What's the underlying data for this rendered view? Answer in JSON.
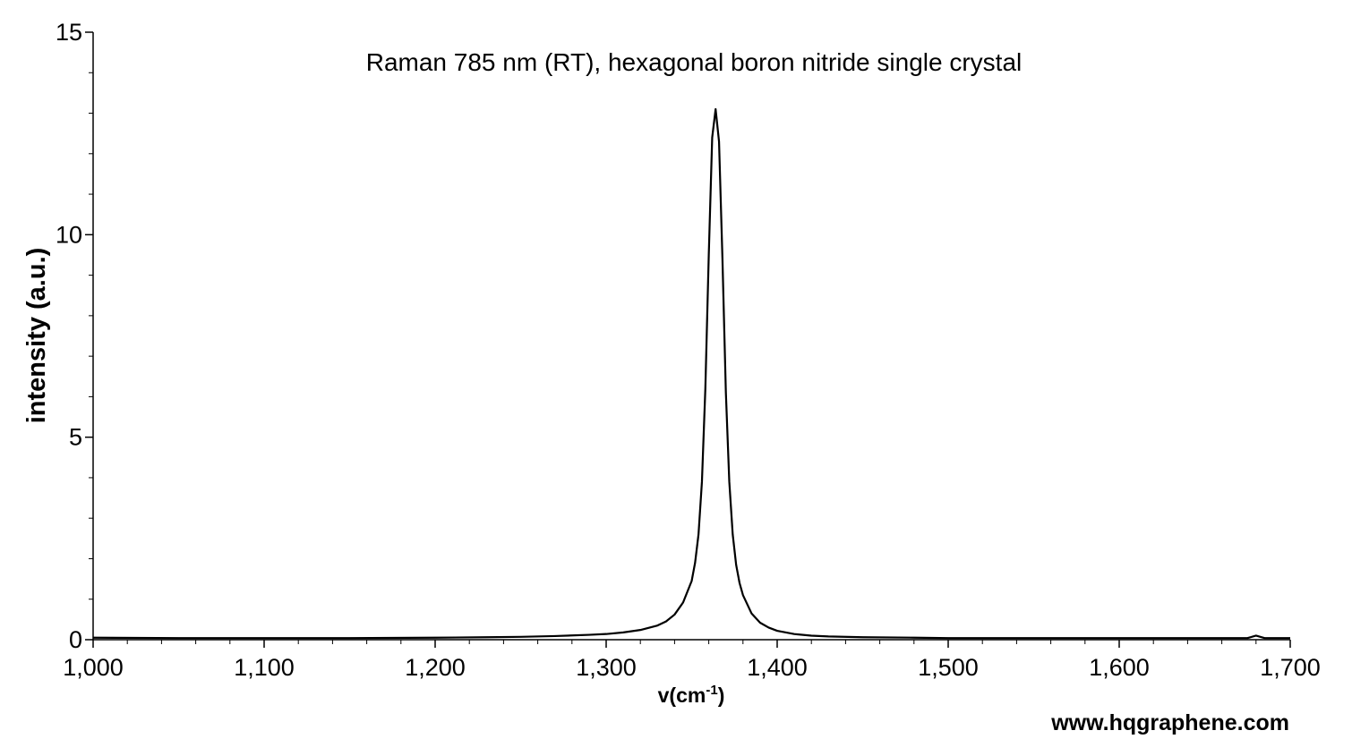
{
  "chart_data": {
    "type": "line",
    "title": "Raman 785 nm (RT), hexagonal boron nitride single crystal",
    "xlabel": "v(cm",
    "xlabel_sup": "-1",
    "xlabel_close": ")",
    "ylabel": "intensity (a.u.)",
    "xlim": [
      1000,
      1700
    ],
    "ylim": [
      0,
      15
    ],
    "x_ticks": [
      1000,
      1100,
      1200,
      1300,
      1400,
      1500,
      1600,
      1700
    ],
    "x_tick_labels": [
      "1,000",
      "1,100",
      "1,200",
      "1,300",
      "1,400",
      "1,500",
      "1,600",
      "1,700"
    ],
    "y_ticks": [
      0,
      5,
      10,
      15
    ],
    "y_tick_labels": [
      "0",
      "5",
      "10",
      "15"
    ],
    "grid": false,
    "series": [
      {
        "color": "#000000",
        "x": [
          1000,
          1050,
          1100,
          1150,
          1200,
          1230,
          1250,
          1270,
          1290,
          1300,
          1310,
          1320,
          1330,
          1335,
          1340,
          1345,
          1350,
          1352,
          1354,
          1356,
          1358,
          1360,
          1362,
          1364,
          1366,
          1368,
          1370,
          1372,
          1374,
          1376,
          1378,
          1380,
          1385,
          1390,
          1395,
          1400,
          1410,
          1420,
          1430,
          1450,
          1480,
          1500,
          1550,
          1600,
          1650,
          1675,
          1680,
          1685,
          1700
        ],
        "y": [
          0.05,
          0.04,
          0.04,
          0.04,
          0.05,
          0.06,
          0.07,
          0.09,
          0.12,
          0.14,
          0.18,
          0.24,
          0.35,
          0.45,
          0.62,
          0.92,
          1.45,
          1.9,
          2.6,
          3.9,
          6.2,
          9.5,
          12.4,
          13.1,
          12.3,
          9.4,
          6.1,
          3.9,
          2.6,
          1.85,
          1.4,
          1.1,
          0.65,
          0.42,
          0.3,
          0.22,
          0.14,
          0.1,
          0.08,
          0.06,
          0.05,
          0.04,
          0.04,
          0.04,
          0.04,
          0.04,
          0.1,
          0.04,
          0.04
        ]
      }
    ]
  },
  "watermark": "www.hqgraphene.com"
}
